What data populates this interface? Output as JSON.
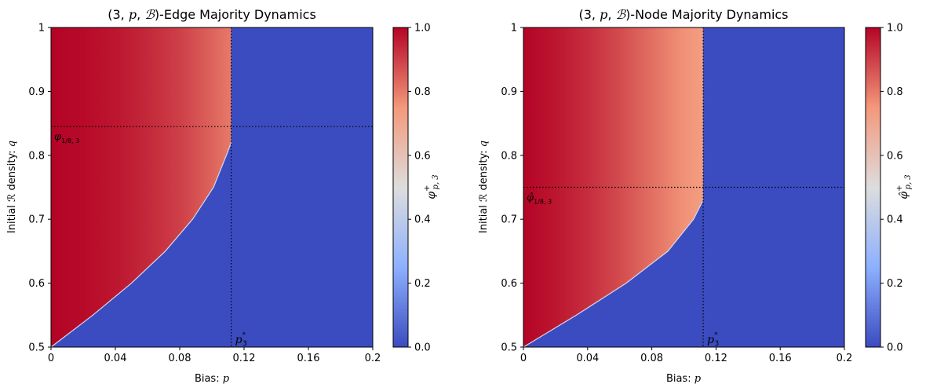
{
  "chart_data": [
    {
      "type": "heatmap",
      "title_pre": "(3, ",
      "title_p": "p",
      "title_sep": ", ",
      "title_b": "ℬ",
      "title_post": ")-Edge Majority Dynamics",
      "xlabel_text": "Bias: ",
      "xlabel_var": "p",
      "ylabel_text": "Initial ℛ density: ",
      "ylabel_var": "q",
      "xlim": [
        0,
        0.2
      ],
      "ylim": [
        0.5,
        1
      ],
      "xticks": [
        0,
        0.04,
        0.08,
        0.12,
        0.16,
        0.2
      ],
      "xtick_labels": [
        "0",
        "0.04",
        "0.08",
        "0.12",
        "0.16",
        "0.2"
      ],
      "yticks": [
        0.5,
        0.6,
        0.7,
        0.8,
        0.9,
        1
      ],
      "ytick_labels": [
        "0.5",
        "0.6",
        "0.7",
        "0.8",
        "0.9",
        "1"
      ],
      "colorbar": {
        "label": "φ",
        "label_sup": "+",
        "label_sub": "p, 3",
        "range": [
          0,
          1
        ],
        "ticks": [
          0,
          0.2,
          0.4,
          0.6,
          0.8,
          1.0
        ],
        "tick_labels": [
          "0.0",
          "0.2",
          "0.4",
          "0.6",
          "0.8",
          "1.0"
        ],
        "colormap": "coolwarm"
      },
      "critical_p": 0.112,
      "critical_p_label": "p",
      "critical_p_sub": "3",
      "critical_p_sup": "*",
      "threshold_q": 0.845,
      "threshold_label": "φ",
      "threshold_sub": "1/8, 3",
      "region_values": [
        {
          "p": 0,
          "value": 1.0
        },
        {
          "p": 0.02,
          "value": 0.99
        },
        {
          "p": 0.04,
          "value": 0.97
        },
        {
          "p": 0.06,
          "value": 0.94
        },
        {
          "p": 0.08,
          "value": 0.9
        },
        {
          "p": 0.1,
          "value": 0.84
        },
        {
          "p": 0.112,
          "value": 0.8
        }
      ],
      "boundary": [
        {
          "q": 0.5,
          "p": 0.0
        },
        {
          "q": 0.55,
          "p": 0.026
        },
        {
          "q": 0.6,
          "p": 0.05
        },
        {
          "q": 0.65,
          "p": 0.071
        },
        {
          "q": 0.7,
          "p": 0.088
        },
        {
          "q": 0.75,
          "p": 0.101
        },
        {
          "q": 0.8,
          "p": 0.109
        },
        {
          "q": 0.82,
          "p": 0.112
        },
        {
          "q": 1.0,
          "p": 0.112
        }
      ]
    },
    {
      "type": "heatmap",
      "title_pre": "(3, ",
      "title_p": "p",
      "title_sep": ", ",
      "title_b": "ℬ",
      "title_post": ")-Node Majority Dynamics",
      "xlabel_text": "Bias: ",
      "xlabel_var": "p",
      "ylabel_text": "Initial ℛ density: ",
      "ylabel_var": "q",
      "xlim": [
        0,
        0.2
      ],
      "ylim": [
        0.5,
        1
      ],
      "xticks": [
        0,
        0.04,
        0.08,
        0.12,
        0.16,
        0.2
      ],
      "xtick_labels": [
        "0",
        "0.04",
        "0.08",
        "0.12",
        "0.16",
        "0.2"
      ],
      "yticks": [
        0.5,
        0.6,
        0.7,
        0.8,
        0.9,
        1
      ],
      "ytick_labels": [
        "0.5",
        "0.6",
        "0.7",
        "0.8",
        "0.9",
        "1"
      ],
      "colorbar": {
        "label": "φ̂",
        "label_sup": "+",
        "label_sub": "p, 3",
        "range": [
          0,
          1
        ],
        "ticks": [
          0,
          0.2,
          0.4,
          0.6,
          0.8,
          1.0
        ],
        "tick_labels": [
          "0.0",
          "0.2",
          "0.4",
          "0.6",
          "0.8",
          "1.0"
        ],
        "colormap": "coolwarm"
      },
      "critical_p": 0.112,
      "critical_p_label": "p",
      "critical_p_sub": "3",
      "critical_p_sup": "*",
      "threshold_q": 0.75,
      "threshold_label": "φ̂",
      "threshold_sub": "1/8, 3",
      "region_values": [
        {
          "p": 0,
          "value": 1.0
        },
        {
          "p": 0.02,
          "value": 0.97
        },
        {
          "p": 0.04,
          "value": 0.93
        },
        {
          "p": 0.06,
          "value": 0.88
        },
        {
          "p": 0.08,
          "value": 0.82
        },
        {
          "p": 0.1,
          "value": 0.76
        },
        {
          "p": 0.112,
          "value": 0.73
        }
      ],
      "boundary": [
        {
          "q": 0.5,
          "p": 0.0
        },
        {
          "q": 0.55,
          "p": 0.033
        },
        {
          "q": 0.6,
          "p": 0.064
        },
        {
          "q": 0.65,
          "p": 0.09
        },
        {
          "q": 0.7,
          "p": 0.106
        },
        {
          "q": 0.73,
          "p": 0.112
        },
        {
          "q": 1.0,
          "p": 0.112
        }
      ]
    }
  ]
}
